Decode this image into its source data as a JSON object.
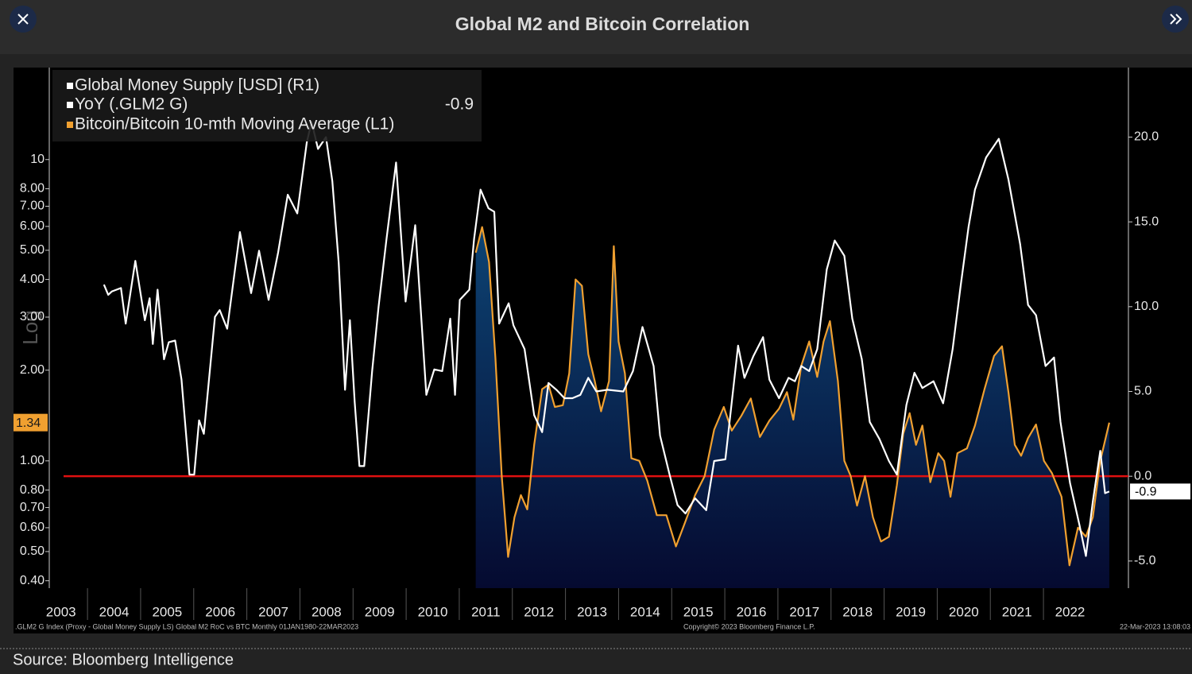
{
  "header": {
    "title": "Global M2 and Bitcoin Correlation"
  },
  "chart_data": {
    "type": "line",
    "legend_group_title": "Global Money Supply [USD] (R1)",
    "y_axis_label": "Log",
    "xlim": [
      2003.28,
      2023.6
    ],
    "xticks": [
      2003,
      2004,
      2005,
      2006,
      2007,
      2008,
      2009,
      2010,
      2011,
      2012,
      2013,
      2014,
      2015,
      2016,
      2017,
      2018,
      2019,
      2020,
      2021,
      2022
    ],
    "ylim": [
      0.378,
      20.2
    ],
    "log_scale_y": true,
    "yticks": [
      {
        "value": 0.4,
        "label": "0.40"
      },
      {
        "value": 0.5,
        "label": "0.50"
      },
      {
        "value": 0.6,
        "label": "0.60"
      },
      {
        "value": 0.7,
        "label": "0.70"
      },
      {
        "value": 0.8,
        "label": "0.80"
      },
      {
        "value": 1,
        "label": "1.00"
      },
      {
        "value": 2,
        "label": "2.00"
      },
      {
        "value": 3,
        "label": "3.00"
      },
      {
        "value": 4,
        "label": "4.00"
      },
      {
        "value": 5,
        "label": "5.00"
      },
      {
        "value": 6,
        "label": "6.00"
      },
      {
        "value": 7,
        "label": "7.00"
      },
      {
        "value": 8,
        "label": "8.00"
      },
      10
    ],
    "y2lim": [
      -6.6,
      24.1
    ],
    "y2ticks": [
      {
        "value": -5,
        "label": "-5.0"
      },
      {
        "value": 0,
        "label": "0.0"
      },
      {
        "value": 5,
        "label": "5.0"
      },
      {
        "value": 10,
        "label": "10.0"
      },
      {
        "value": 15,
        "label": "15.0"
      },
      {
        "value": 20,
        "label": "20.0"
      }
    ],
    "reference_line": {
      "value": 0,
      "axis": "y2",
      "color": "#e01010"
    },
    "series": [
      {
        "name": "YoY (.GLM2 G)",
        "color": "#ffffff",
        "axis": "y2",
        "last_value": -0.9,
        "x": [
          2004.31,
          2004.39,
          2004.46,
          2004.63,
          2004.72,
          2004.9,
          2005.08,
          2005.17,
          2005.23,
          2005.32,
          2005.44,
          2005.53,
          2005.65,
          2005.77,
          2005.92,
          2006.01,
          2006.1,
          2006.19,
          2006.4,
          2006.49,
          2006.63,
          2006.87,
          2007.08,
          2007.23,
          2007.41,
          2007.59,
          2007.77,
          2007.95,
          2008.13,
          2008.22,
          2008.34,
          2008.49,
          2008.61,
          2008.73,
          2008.85,
          2008.94,
          2009.03,
          2009.12,
          2009.21,
          2009.36,
          2009.48,
          2009.63,
          2009.81,
          2009.99,
          2010.17,
          2010.38,
          2010.53,
          2010.68,
          2010.83,
          2010.92,
          2011.01,
          2011.19,
          2011.28,
          2011.4,
          2011.55,
          2011.66,
          2011.75,
          2011.93,
          2012.02,
          2012.23,
          2012.41,
          2012.56,
          2012.68,
          2012.83,
          2012.98,
          2013.13,
          2013.28,
          2013.43,
          2013.58,
          2013.79,
          2014.09,
          2014.27,
          2014.45,
          2014.66,
          2014.78,
          2014.96,
          2015.11,
          2015.26,
          2015.44,
          2015.65,
          2015.8,
          2016.01,
          2016.25,
          2016.37,
          2016.54,
          2016.72,
          2016.84,
          2017.02,
          2017.2,
          2017.32,
          2017.44,
          2017.59,
          2017.74,
          2017.92,
          2018.07,
          2018.25,
          2018.4,
          2018.58,
          2018.73,
          2018.91,
          2019.09,
          2019.24,
          2019.42,
          2019.57,
          2019.72,
          2019.93,
          2020.11,
          2020.29,
          2020.44,
          2020.59,
          2020.71,
          2020.92,
          2021.16,
          2021.34,
          2021.56,
          2021.71,
          2021.86,
          2022.04,
          2022.2,
          2022.32,
          2022.5,
          2022.68,
          2022.8,
          2022.93,
          2023.07,
          2023.16,
          2023.24
        ],
        "values": [
          11.3,
          10.7,
          10.9,
          11.1,
          9.0,
          12.7,
          9.2,
          10.5,
          7.8,
          11.0,
          6.9,
          7.9,
          8.0,
          5.7,
          0.1,
          0.1,
          3.3,
          2.5,
          9.4,
          9.8,
          8.7,
          14.4,
          10.8,
          13.3,
          10.4,
          13.2,
          16.6,
          15.5,
          19.7,
          20.9,
          19.3,
          20.0,
          17.4,
          12.6,
          5.1,
          9.2,
          4.4,
          0.6,
          0.6,
          6.2,
          10.0,
          14.0,
          18.5,
          10.3,
          14.8,
          4.8,
          6.3,
          6.2,
          9.3,
          4.8,
          10.4,
          11.0,
          14.0,
          16.9,
          15.8,
          15.6,
          9.0,
          10.2,
          8.9,
          7.5,
          3.6,
          2.6,
          5.5,
          5.1,
          4.6,
          4.6,
          4.8,
          5.8,
          5.0,
          5.1,
          5.0,
          6.2,
          8.8,
          6.5,
          2.4,
          0.1,
          -1.7,
          -2.2,
          -1.3,
          -2.0,
          0.9,
          1.0,
          7.7,
          5.8,
          7.1,
          8.2,
          5.7,
          4.6,
          5.8,
          5.6,
          6.5,
          6.2,
          7.5,
          12.2,
          13.9,
          13.0,
          9.3,
          6.9,
          3.2,
          2.2,
          0.9,
          0.1,
          4.2,
          6.1,
          5.2,
          5.6,
          4.3,
          7.5,
          11.2,
          14.7,
          16.9,
          18.8,
          19.9,
          17.5,
          13.7,
          10.1,
          9.5,
          6.5,
          7.0,
          3.2,
          -0.4,
          -2.9,
          -4.7,
          -1.5,
          1.5,
          -1.0,
          -0.9
        ]
      },
      {
        "name": "Bitcoin/Bitcoin 10-mth Moving Average (L1)",
        "color": "#f0a030",
        "axis": "y",
        "last_value": 1.34,
        "x": [
          2011.31,
          2011.43,
          2011.56,
          2011.68,
          2011.8,
          2011.92,
          2012.04,
          2012.16,
          2012.28,
          2012.41,
          2012.56,
          2012.68,
          2012.8,
          2012.95,
          2013.07,
          2013.19,
          2013.31,
          2013.43,
          2013.55,
          2013.67,
          2013.82,
          2013.91,
          2014.0,
          2014.12,
          2014.24,
          2014.39,
          2014.54,
          2014.72,
          2014.9,
          2015.08,
          2015.26,
          2015.44,
          2015.62,
          2015.8,
          2015.98,
          2016.13,
          2016.31,
          2016.49,
          2016.66,
          2016.84,
          2017.02,
          2017.17,
          2017.29,
          2017.44,
          2017.59,
          2017.74,
          2017.86,
          2017.98,
          2018.13,
          2018.25,
          2018.37,
          2018.49,
          2018.64,
          2018.79,
          2018.94,
          2019.09,
          2019.24,
          2019.36,
          2019.48,
          2019.6,
          2019.72,
          2019.87,
          2020.02,
          2020.13,
          2020.25,
          2020.38,
          2020.56,
          2020.71,
          2020.89,
          2021.07,
          2021.22,
          2021.34,
          2021.46,
          2021.58,
          2021.71,
          2021.86,
          2022.01,
          2022.16,
          2022.34,
          2022.49,
          2022.65,
          2022.8,
          2022.93,
          2023.07,
          2023.24
        ],
        "values": [
          4.91,
          5.97,
          4.57,
          2.2,
          0.89,
          0.48,
          0.65,
          0.77,
          0.69,
          1.13,
          1.73,
          1.79,
          1.51,
          1.53,
          1.95,
          4.0,
          3.81,
          2.26,
          1.84,
          1.46,
          1.84,
          5.16,
          2.49,
          1.95,
          1.02,
          1.0,
          0.86,
          0.66,
          0.66,
          0.52,
          0.63,
          0.77,
          0.89,
          1.27,
          1.51,
          1.26,
          1.41,
          1.61,
          1.2,
          1.36,
          1.49,
          1.69,
          1.37,
          2.07,
          2.49,
          1.9,
          2.49,
          2.91,
          1.84,
          1.0,
          0.89,
          0.71,
          0.89,
          0.65,
          0.54,
          0.56,
          0.83,
          1.23,
          1.44,
          1.13,
          1.31,
          0.85,
          1.06,
          1.0,
          0.76,
          1.06,
          1.1,
          1.31,
          1.73,
          2.23,
          2.4,
          1.69,
          1.13,
          1.04,
          1.19,
          1.32,
          1.0,
          0.91,
          0.76,
          0.45,
          0.6,
          0.56,
          0.65,
          1.0,
          1.34
        ]
      }
    ],
    "footer_left": ".GLM2 G Index (Proxy - Global Money Supply LS) Global M2 RoC vs BTC  Monthly 01JAN1980-22MAR2023",
    "footer_center": "Copyright© 2023 Bloomberg Finance L.P.",
    "footer_right": "22-Mar-2023 13:08:03"
  },
  "source": "Source: Bloomberg Intelligence"
}
